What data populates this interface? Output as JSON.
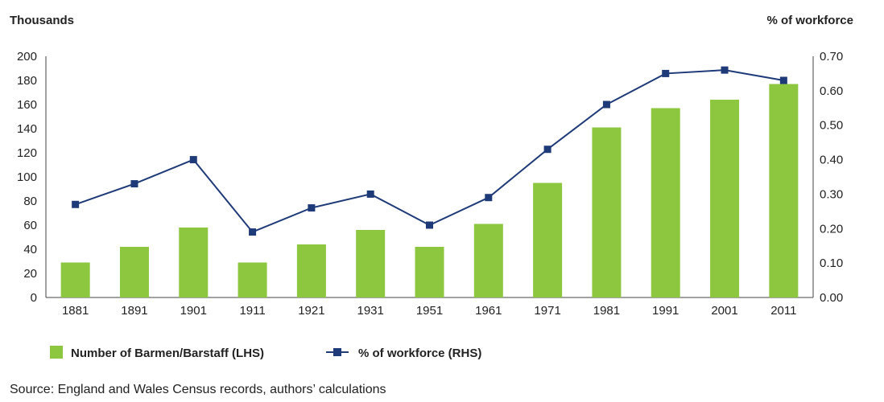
{
  "chart_data": {
    "type": "bar+line",
    "categories": [
      "1881",
      "1891",
      "1901",
      "1911",
      "1921",
      "1931",
      "1951",
      "1961",
      "1971",
      "1981",
      "1991",
      "2001",
      "2011"
    ],
    "series": [
      {
        "name": "Number of Barmen/Barstaff (LHS)",
        "type": "bar",
        "axis": "left",
        "color": "#8dc63f",
        "values": [
          29,
          42,
          58,
          29,
          44,
          56,
          42,
          61,
          95,
          141,
          157,
          164,
          177
        ]
      },
      {
        "name": "% of workforce (RHS)",
        "type": "line",
        "axis": "right",
        "color": "#1f3a78",
        "values": [
          0.27,
          0.33,
          0.4,
          0.19,
          0.26,
          0.3,
          0.21,
          0.29,
          0.43,
          0.56,
          0.65,
          0.66,
          0.63
        ]
      }
    ],
    "y_left": {
      "label": "Thousands",
      "min": 0,
      "max": 200,
      "ticks": [
        "0",
        "20",
        "40",
        "60",
        "80",
        "100",
        "120",
        "140",
        "160",
        "180",
        "200"
      ]
    },
    "y_right": {
      "label": "% of workforce",
      "min": 0,
      "max": 0.7,
      "ticks": [
        "0.00",
        "0.10",
        "0.20",
        "0.30",
        "0.40",
        "0.50",
        "0.60",
        "0.70"
      ]
    },
    "grid": false,
    "legend": "bottom-left",
    "source": "Source: England and Wales Census records, authors’ calculations"
  }
}
